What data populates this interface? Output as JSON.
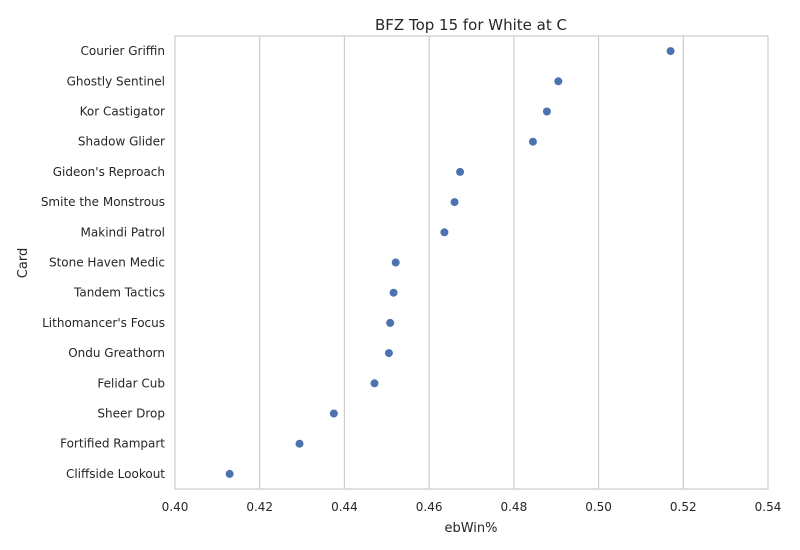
{
  "chart_data": {
    "type": "scatter",
    "title": "BFZ Top 15 for White at C",
    "xlabel": "ebWin%",
    "ylabel": "Card",
    "xlim": [
      0.4,
      0.54
    ],
    "xticks": [
      "0.40",
      "0.42",
      "0.44",
      "0.46",
      "0.48",
      "0.50",
      "0.52",
      "0.54"
    ],
    "grid": "vertical",
    "marker_color": "#4c72b0",
    "categories": [
      "Courier Griffin",
      "Ghostly Sentinel",
      "Kor Castigator",
      "Shadow Glider",
      "Gideon's Reproach",
      "Smite the Monstrous",
      "Makindi Patrol",
      "Stone Haven Medic",
      "Tandem Tactics",
      "Lithomancer's Focus",
      "Ondu Greathorn",
      "Felidar Cub",
      "Sheer Drop",
      "Fortified Rampart",
      "Cliffside Lookout"
    ],
    "values": [
      0.517,
      0.4905,
      0.4878,
      0.4845,
      0.4673,
      0.466,
      0.4636,
      0.4521,
      0.4516,
      0.4508,
      0.4505,
      0.4471,
      0.4375,
      0.4294,
      0.4129
    ]
  }
}
